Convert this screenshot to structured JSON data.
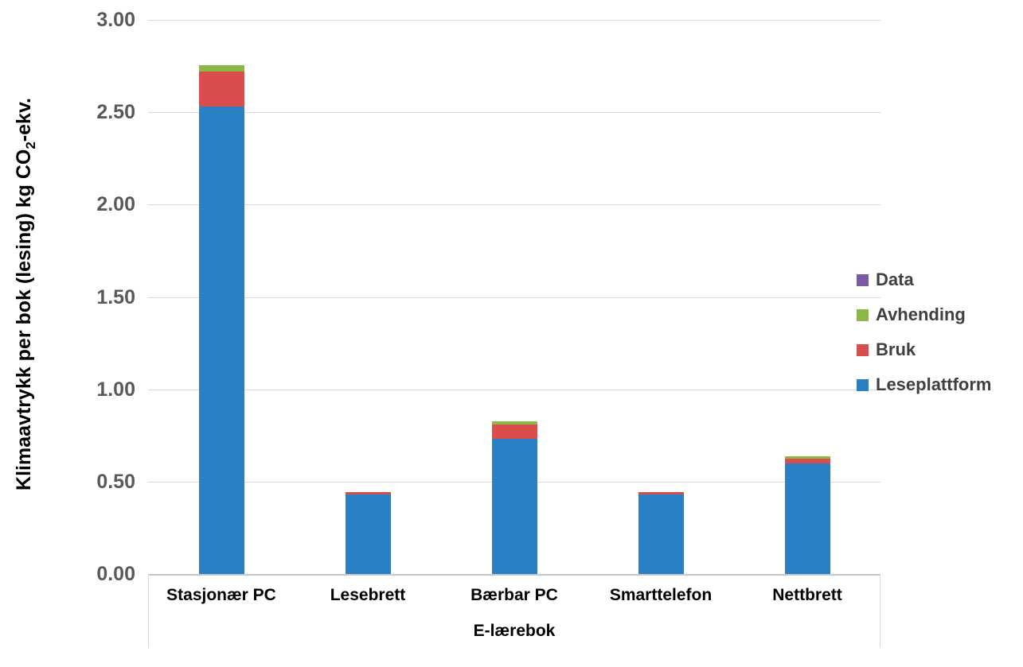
{
  "chart_data": {
    "type": "bar",
    "stacked": true,
    "xlabel": "E-lærebok",
    "ylabel": "Klimaavtrykk per bok (lesing) kg CO₂-ekv.",
    "ylabel_parts": {
      "prefix": "Klimaavtrykk per bok (lesing) kg CO",
      "subscript": "2",
      "suffix": "-ekv."
    },
    "categories": [
      "Stasjonær PC",
      "Lesebrett",
      "Bærbar PC",
      "Smarttelefon",
      "Nettbrett"
    ],
    "series": [
      {
        "name": "Leseplattform",
        "color": "#2A80C2",
        "values": [
          2.53,
          0.43,
          0.73,
          0.43,
          0.6
        ]
      },
      {
        "name": "Bruk",
        "color": "#DB4C4C",
        "values": [
          0.19,
          0.012,
          0.08,
          0.012,
          0.025
        ]
      },
      {
        "name": "Avhending",
        "color": "#8CB84A",
        "values": [
          0.035,
          0,
          0.015,
          0,
          0.01
        ]
      },
      {
        "name": "Data",
        "color": "#7A5AA3",
        "values": [
          0,
          0,
          0,
          0,
          0
        ]
      }
    ],
    "stack_order_bottom_to_top": [
      "Leseplattform",
      "Bruk",
      "Avhending",
      "Data"
    ],
    "legend": {
      "position": "right",
      "order_top_to_bottom": [
        "Data",
        "Avhending",
        "Bruk",
        "Leseplattform"
      ]
    },
    "ylim": [
      0,
      3
    ],
    "ytick_step": 0.5,
    "yticks": [
      {
        "value": 3.0,
        "label": "3.00"
      },
      {
        "value": 2.5,
        "label": "2.50"
      },
      {
        "value": 2.0,
        "label": "2.00"
      },
      {
        "value": 1.5,
        "label": "1.50"
      },
      {
        "value": 1.0,
        "label": "1.00"
      },
      {
        "value": 0.5,
        "label": "0.50"
      },
      {
        "value": 0.0,
        "label": "0.00"
      }
    ],
    "grid": true
  },
  "style": {
    "grid_color": "#D9D9D9",
    "axis_line_color": "#C6C6C6",
    "tick_label_color": "#595959",
    "category_label_color": "#000000",
    "legend_text_color": "#404040",
    "background": "#FFFFFF"
  }
}
